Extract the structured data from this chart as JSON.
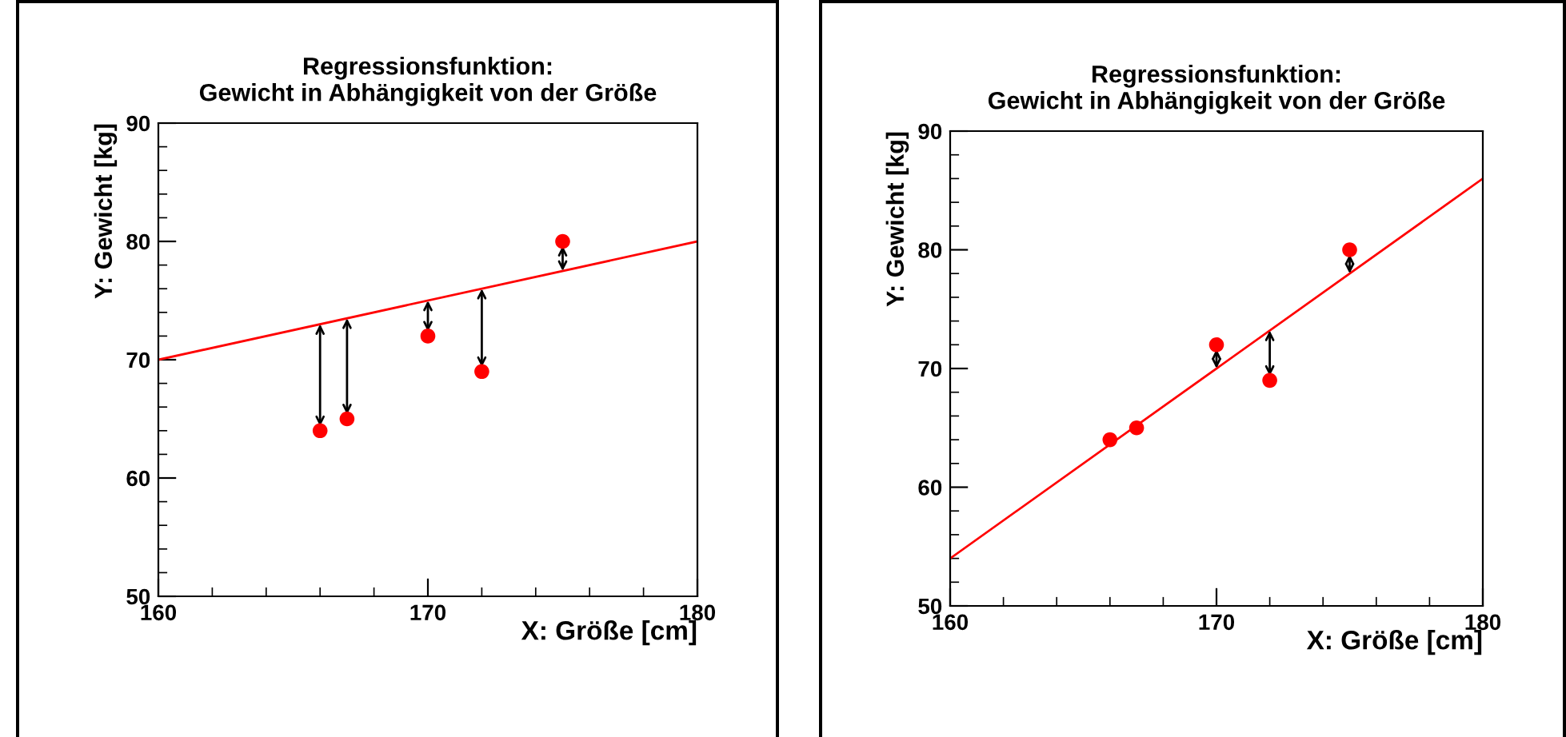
{
  "chart_data": [
    {
      "type": "scatter",
      "title": "Regressionsfunktion:",
      "subtitle": "Gewicht in Abhängigkeit von der Größe",
      "xlabel": "X: Größe [cm]",
      "ylabel": "Y: Gewicht [kg]",
      "xlim": [
        160,
        180
      ],
      "ylim": [
        50,
        90
      ],
      "xticks": [
        160,
        170,
        180
      ],
      "yticks": [
        50,
        60,
        70,
        80,
        90
      ],
      "series": [
        {
          "color": "#ff0000",
          "marker": "circle",
          "x": [
            166,
            167,
            170,
            172,
            175
          ],
          "values": [
            64,
            65,
            72,
            69,
            80
          ]
        },
        {
          "type": "line",
          "color": "#ff0000",
          "marker": "none",
          "x": [
            160,
            180
          ],
          "values": [
            70,
            80
          ],
          "line_style": "solid"
        }
      ]
    },
    {
      "type": "scatter",
      "title": "Regressionsfunktion:",
      "subtitle": "Gewicht in Abhängigkeit von der Größe",
      "xlabel": "X: Größe [cm]",
      "ylabel": "Y: Gewicht [kg]",
      "xlim": [
        160,
        180
      ],
      "ylim": [
        50,
        90
      ],
      "xticks": [
        160,
        170,
        180
      ],
      "yticks": [
        50,
        60,
        70,
        80,
        90
      ],
      "series": [
        {
          "color": "#ff0000",
          "marker": "circle",
          "x": [
            166,
            167,
            170,
            172,
            175
          ],
          "values": [
            64,
            65,
            72,
            69,
            80
          ]
        },
        {
          "type": "line",
          "color": "#ff0000",
          "marker": "none",
          "x": [
            160,
            180
          ],
          "values": [
            54,
            86
          ],
          "line_style": "solid"
        }
      ]
    }
  ]
}
